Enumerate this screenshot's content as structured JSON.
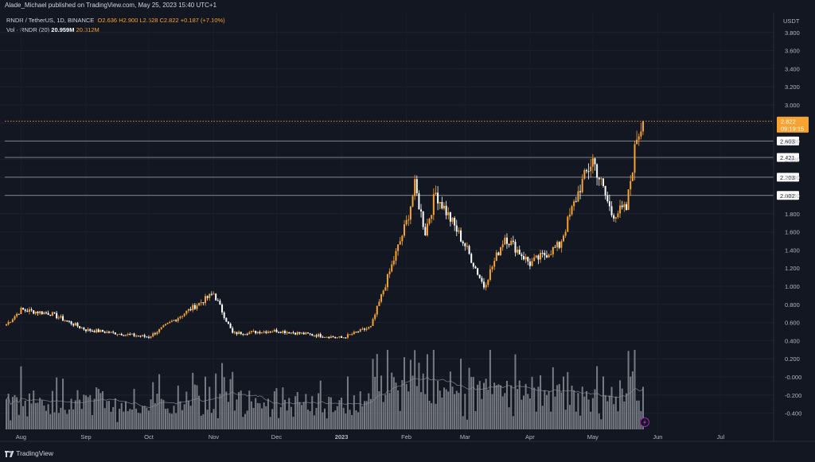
{
  "header": {
    "published": "Alade_Michael published on TradingView.com, May 25, 2023 15:40 UTC+1"
  },
  "legend": {
    "symbol": "RNDR / TetherUS, 1D, BINANCE",
    "open": "O2.636",
    "high": "H2.900",
    "low": "L2.528",
    "close": "C2.822",
    "change": "+0.187 (+7.10%)",
    "volume_label": "Vol · RNDR (20)",
    "volume_value": "20.959M",
    "volume_ma": "20.312M"
  },
  "footer": {
    "brand": "TradingView"
  },
  "colors": {
    "background": "#131722",
    "up": "#f7a331",
    "down": "#ffffff",
    "volume": "#9a9ca3",
    "price_line": "#f7a331"
  },
  "chart_data": {
    "type": "candlestick",
    "unit": "USDT",
    "price_axis": {
      "ticks": [
        3.8,
        3.6,
        3.4,
        3.2,
        3.0,
        2.8,
        2.6,
        2.4,
        2.2,
        2.0,
        1.8,
        1.6,
        1.4,
        1.2,
        1.0,
        0.8,
        0.6,
        0.4,
        0.2,
        -0.0,
        -0.2,
        -0.4
      ],
      "tick_labels": [
        "3.800",
        "3.600",
        "3.400",
        "3.200",
        "3.000",
        "2.800",
        "2.600",
        "2.400",
        "2.200",
        "2.000",
        "1.800",
        "1.600",
        "1.400",
        "1.200",
        "1.000",
        "0.800",
        "0.600",
        "0.400",
        "0.200",
        "-0.000",
        "-0.200",
        "-0.400"
      ]
    },
    "time_axis": {
      "labels": [
        "Aug",
        "Sep",
        "Oct",
        "Nov",
        "Dec",
        "2023",
        "Feb",
        "Mar",
        "Apr",
        "May",
        "Jun",
        "Jul"
      ]
    },
    "horizontal_levels": [
      {
        "value": 2.603,
        "label": "2.603"
      },
      {
        "value": 2.421,
        "label": "2.421"
      },
      {
        "value": 2.203,
        "label": "2.203"
      },
      {
        "value": 2.002,
        "label": "2.002"
      }
    ],
    "last_price": {
      "value": 2.822,
      "label": "2.822",
      "countdown": "09:19:15"
    },
    "close_series_monthly": [
      {
        "date": "2022-07-25",
        "close": 0.58
      },
      {
        "date": "2022-08-01",
        "close": 0.74
      },
      {
        "date": "2022-08-15",
        "close": 0.7
      },
      {
        "date": "2022-09-01",
        "close": 0.52
      },
      {
        "date": "2022-10-01",
        "close": 0.44
      },
      {
        "date": "2022-11-01",
        "close": 0.92
      },
      {
        "date": "2022-11-10",
        "close": 0.48
      },
      {
        "date": "2022-12-01",
        "close": 0.51
      },
      {
        "date": "2023-01-01",
        "close": 0.43
      },
      {
        "date": "2023-01-15",
        "close": 0.55
      },
      {
        "date": "2023-02-01",
        "close": 1.7
      },
      {
        "date": "2023-02-05",
        "close": 2.1
      },
      {
        "date": "2023-02-10",
        "close": 1.6
      },
      {
        "date": "2023-02-15",
        "close": 2.03
      },
      {
        "date": "2023-03-01",
        "close": 1.45
      },
      {
        "date": "2023-03-10",
        "close": 1.0
      },
      {
        "date": "2023-03-20",
        "close": 1.55
      },
      {
        "date": "2023-04-01",
        "close": 1.25
      },
      {
        "date": "2023-04-15",
        "close": 1.45
      },
      {
        "date": "2023-04-25",
        "close": 2.1
      },
      {
        "date": "2023-05-01",
        "close": 2.4
      },
      {
        "date": "2023-05-10",
        "close": 1.8
      },
      {
        "date": "2023-05-17",
        "close": 1.85
      },
      {
        "date": "2023-05-22",
        "close": 2.65
      },
      {
        "date": "2023-05-25",
        "close": 2.822
      }
    ]
  }
}
